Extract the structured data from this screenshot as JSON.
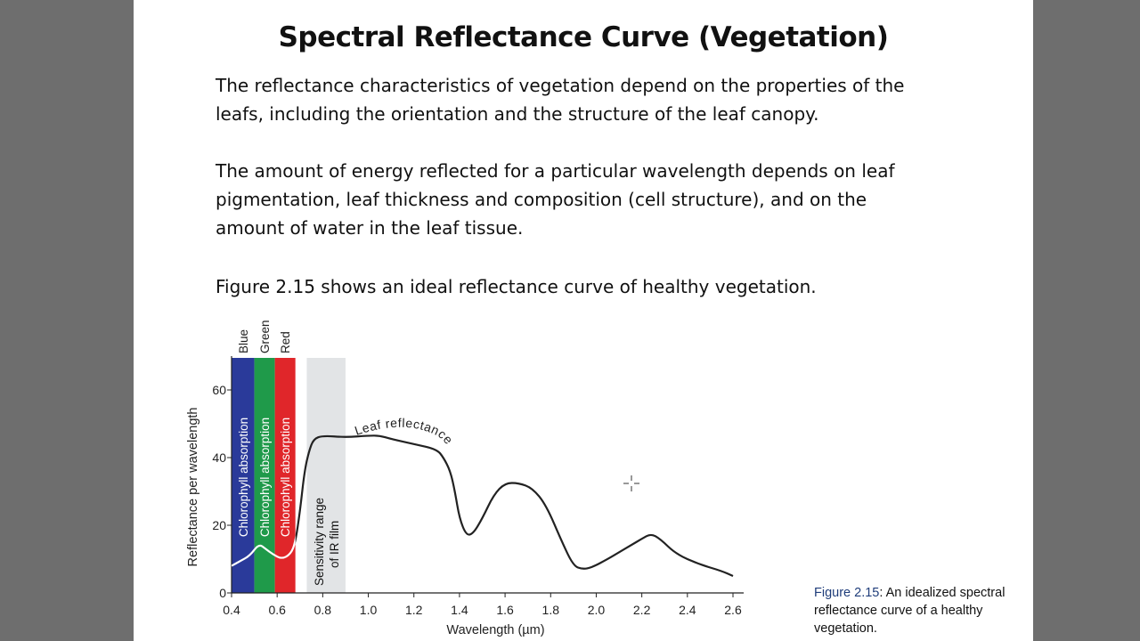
{
  "slide": {
    "title": "Spectral Reflectance Curve (Vegetation)",
    "paragraph_1": "The reflectance characteristics of vegetation depend on the properties of the leafs, including the orientation and the structure of the leaf canopy.",
    "paragraph_2": "The amount of energy reflected for a particular wavelength depends on leaf pigmentation, leaf thickness and composition (cell structure), and on the amount of water in the leaf tissue.",
    "paragraph_3": "Figure 2.15 shows an ideal reflectance curve of healthy vegetation."
  },
  "caption": {
    "figure_number": "Figure 2.15",
    "text": ": An idealized spectral reflectance curve of a healthy vegetation."
  },
  "colors": {
    "blue_band": "#2a3a9a",
    "green_band": "#1f9a4a",
    "red_band": "#e0262a",
    "ir_band": "#e2e4e6",
    "curve": "#222222"
  },
  "chart_data": {
    "type": "line",
    "xlabel": "Wavelength (µm)",
    "ylabel": "Reflectance per wavelength",
    "xlim": [
      0.4,
      2.6
    ],
    "ylim": [
      0,
      70
    ],
    "x_ticks": [
      "0.4",
      "0.6",
      "0.8",
      "1.0",
      "1.2",
      "1.4",
      "1.6",
      "1.8",
      "2.0",
      "2.2",
      "2.4",
      "2.6"
    ],
    "y_ticks": [
      "0",
      "20",
      "40",
      "60"
    ],
    "bands": [
      {
        "name": "Blue",
        "label": "Chlorophyll absorption",
        "range": [
          0.4,
          0.5
        ]
      },
      {
        "name": "Green",
        "label": "Chlorophyll absorption",
        "range": [
          0.5,
          0.59
        ]
      },
      {
        "name": "Red",
        "label": "Chlorophyll absorption",
        "range": [
          0.59,
          0.68
        ]
      },
      {
        "name": "",
        "label": "Sensitivity range of IR film",
        "range": [
          0.73,
          0.9
        ]
      }
    ],
    "curve_label": "Leaf reflectance",
    "series": [
      {
        "x": [
          0.4,
          0.44,
          0.48,
          0.52,
          0.55,
          0.58,
          0.62,
          0.66,
          0.68,
          0.7,
          0.72,
          0.74,
          0.76,
          0.8,
          0.9,
          1.0,
          1.05,
          1.1,
          1.2,
          1.3,
          1.33,
          1.36,
          1.38,
          1.4,
          1.43,
          1.46,
          1.5,
          1.55,
          1.6,
          1.66,
          1.72,
          1.78,
          1.85,
          1.9,
          1.94,
          1.98,
          2.05,
          2.1,
          2.15,
          2.2,
          2.24,
          2.28,
          2.35,
          2.45,
          2.55,
          2.6
        ],
        "y": [
          8,
          9.5,
          11,
          14.5,
          13,
          11.5,
          10,
          11.5,
          15,
          24,
          36,
          42,
          45.5,
          46.5,
          46,
          46.5,
          46.5,
          45.5,
          44,
          42.5,
          40,
          36,
          30,
          22,
          17,
          17.5,
          22,
          29,
          32.5,
          32.5,
          31,
          26,
          15,
          8,
          7,
          7.5,
          10,
          12,
          14,
          16,
          17.5,
          16,
          11.5,
          8.5,
          6.5,
          5
        ]
      }
    ]
  }
}
